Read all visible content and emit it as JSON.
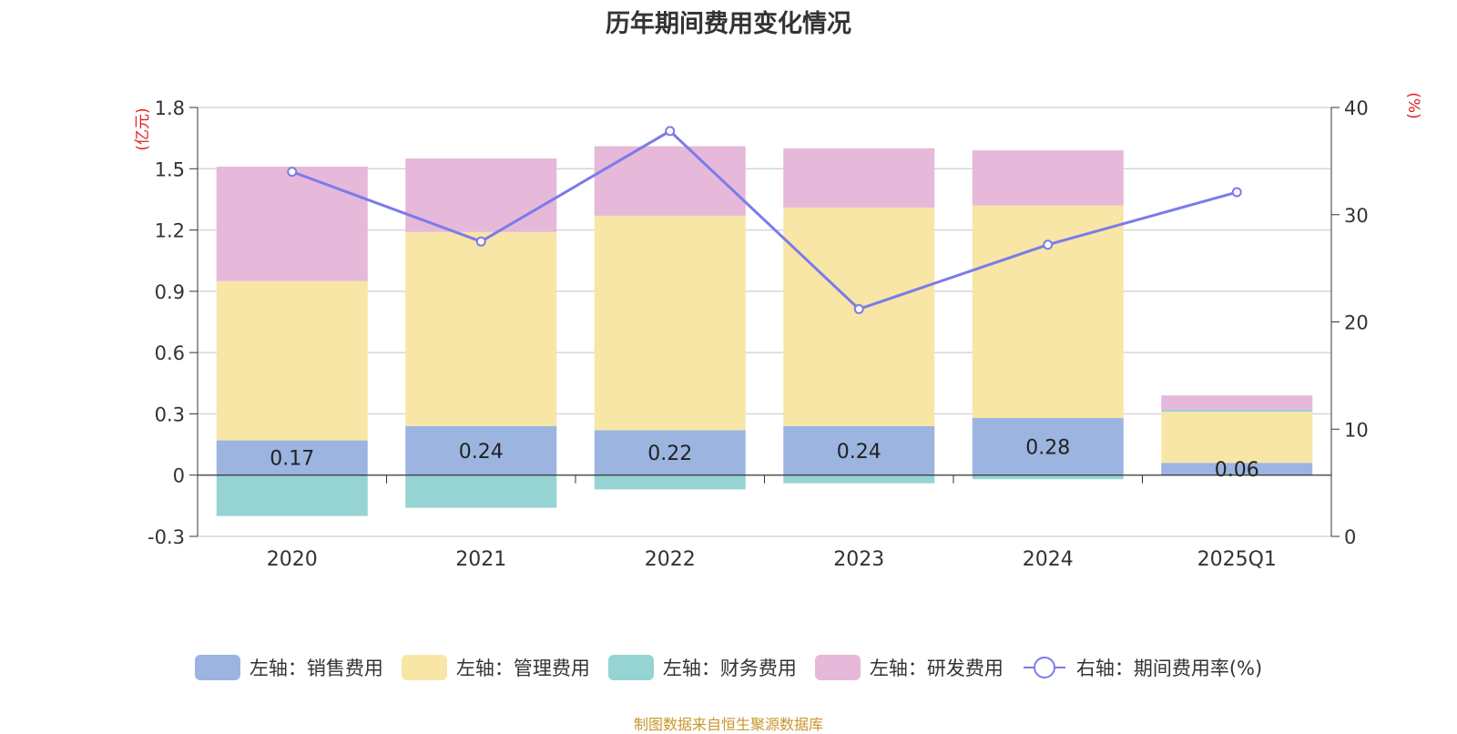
{
  "chart_data": {
    "type": "bar",
    "title": "历年期间费用变化情况",
    "categories": [
      "2020",
      "2021",
      "2022",
      "2023",
      "2024",
      "2025Q1"
    ],
    "left_axis": {
      "unit_label": "(亿元)",
      "range": [
        -0.3,
        1.8
      ],
      "ticks": [
        "1.8",
        "1.5",
        "1.2",
        "0.9",
        "0.6",
        "0.3",
        "0",
        "-0.3"
      ]
    },
    "right_axis": {
      "unit_label": "(%)",
      "range": [
        0,
        40
      ],
      "ticks": [
        "40",
        "30",
        "20",
        "10",
        "0"
      ]
    },
    "series": [
      {
        "name": "左轴：销售费用",
        "color": "#9bb5e0",
        "values": [
          0.17,
          0.24,
          0.22,
          0.24,
          0.28,
          0.06
        ],
        "data_labels": [
          "0.17",
          "0.24",
          "0.22",
          "0.24",
          "0.28",
          "0.06"
        ]
      },
      {
        "name": "左轴：管理费用",
        "color": "#f7e6a6",
        "values": [
          0.78,
          0.95,
          1.05,
          1.07,
          1.04,
          0.25
        ]
      },
      {
        "name": "左轴：财务费用",
        "color": "#96d3d3",
        "values": [
          -0.2,
          -0.16,
          -0.07,
          -0.04,
          -0.02,
          0.01
        ]
      },
      {
        "name": "左轴：研发费用",
        "color": "#e6b8d9",
        "values": [
          0.56,
          0.36,
          0.34,
          0.29,
          0.27,
          0.07
        ]
      },
      {
        "name": "右轴：期间费用率(%)",
        "type": "line",
        "color": "#7b7bea",
        "values": [
          34.0,
          27.5,
          37.8,
          21.2,
          27.2,
          32.1
        ]
      }
    ],
    "grid": true,
    "legend_position": "bottom"
  },
  "source_note": "制图数据来自恒生聚源数据库"
}
